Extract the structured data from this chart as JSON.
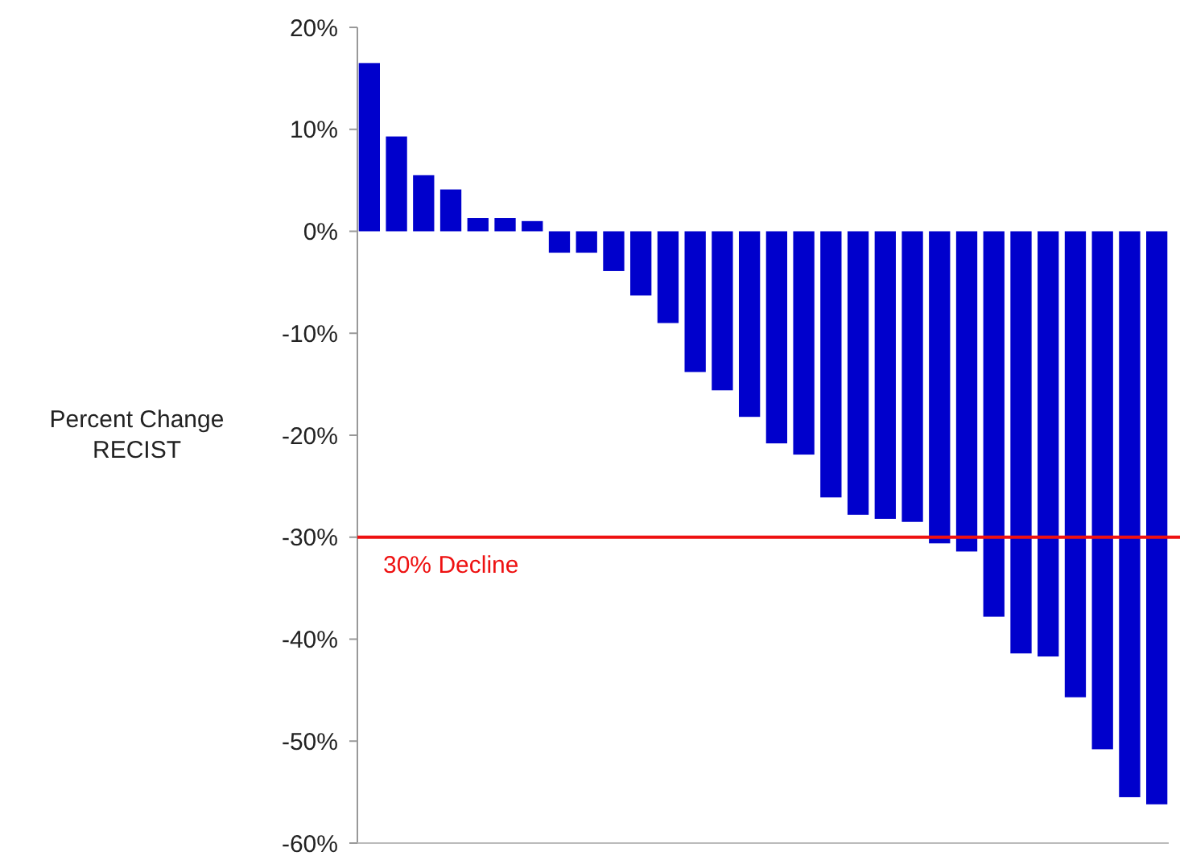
{
  "chart_data": {
    "type": "bar",
    "ylabel": "Percent Change\nRECIST",
    "categories": [
      null,
      null,
      null,
      null,
      null,
      null,
      null,
      null,
      null,
      null,
      null,
      null,
      null,
      null,
      null,
      null,
      null,
      null,
      null,
      null,
      null,
      null,
      null,
      null,
      null,
      null,
      null,
      null,
      null,
      null
    ],
    "values": [
      16.5,
      9.3,
      5.5,
      4.1,
      1.3,
      1.3,
      1.0,
      -2.1,
      -2.1,
      -3.9,
      -6.3,
      -9.0,
      -13.8,
      -15.6,
      -18.2,
      -20.8,
      -21.9,
      -26.1,
      -27.8,
      -28.2,
      -28.5,
      -30.6,
      -31.4,
      -37.8,
      -41.4,
      -41.7,
      -45.7,
      -50.8,
      -55.5,
      -56.2
    ],
    "color": "#0000cc",
    "ylim": [
      -60,
      20
    ],
    "yticks": [
      {
        "value": 20,
        "label": "20%"
      },
      {
        "value": 10,
        "label": "10%"
      },
      {
        "value": 0,
        "label": "0%"
      },
      {
        "value": -10,
        "label": "-10%"
      },
      {
        "value": -20,
        "label": "-20%"
      },
      {
        "value": -30,
        "label": "-30%"
      },
      {
        "value": -40,
        "label": "-40%"
      },
      {
        "value": -50,
        "label": "-50%"
      },
      {
        "value": -60,
        "label": "-60%"
      }
    ],
    "ref_lines": [
      {
        "axis": "y",
        "value": -30,
        "label": "30% Decline",
        "color": "#ee1111"
      }
    ],
    "grid": false
  }
}
